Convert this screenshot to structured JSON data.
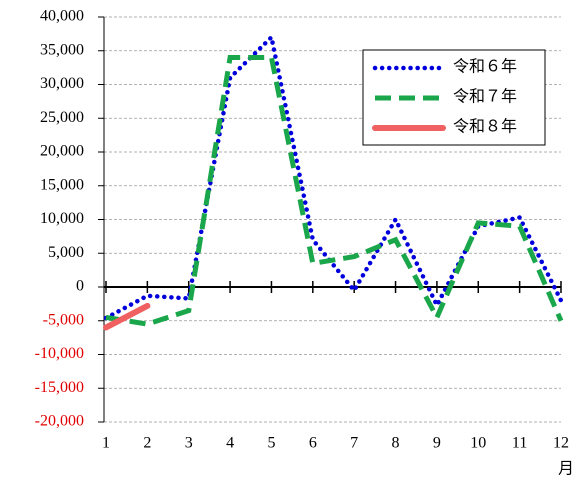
{
  "chart_data": {
    "type": "line",
    "x": [
      1,
      2,
      3,
      4,
      5,
      6,
      7,
      8,
      9,
      10,
      11,
      12
    ],
    "x_label": "月",
    "xlim": [
      1,
      12
    ],
    "xticks": [
      1,
      2,
      3,
      4,
      5,
      6,
      7,
      8,
      9,
      10,
      11,
      12
    ],
    "ylim": [
      -20000,
      40000
    ],
    "yticks": [
      {
        "value": -20000,
        "label": "-20,000"
      },
      {
        "value": -15000,
        "label": "-15,000"
      },
      {
        "value": -10000,
        "label": "-10,000"
      },
      {
        "value": -5000,
        "label": "-5,000"
      },
      0,
      {
        "value": 5000,
        "label": "5,000"
      },
      {
        "value": 10000,
        "label": "10,000"
      },
      {
        "value": 15000,
        "label": "15,000"
      },
      {
        "value": 20000,
        "label": "20,000"
      },
      {
        "value": 25000,
        "label": "25,000"
      },
      {
        "value": 30000,
        "label": "30,000"
      },
      {
        "value": 35000,
        "label": "35,000"
      },
      {
        "value": 40000,
        "label": "40,000"
      }
    ],
    "grid": true,
    "negative_tick_color": "#e00000",
    "legend": "upper right",
    "series": [
      {
        "name": "令和６年",
        "color": "#0000dd",
        "style": "dotted",
        "values": [
          -4600,
          -1300,
          -1700,
          31000,
          37000,
          7000,
          -500,
          10000,
          -2700,
          9000,
          10300,
          -2000
        ]
      },
      {
        "name": "令和７年",
        "color": "#1aa64a",
        "style": "dashed",
        "values": [
          -4500,
          -5500,
          -3500,
          34000,
          34000,
          3500,
          4500,
          7000,
          -4500,
          9500,
          9000,
          -5000
        ]
      },
      {
        "name": "令和８年",
        "color": "#f06060",
        "style": "solid",
        "values": [
          -6000,
          -2800,
          null,
          null,
          null,
          null,
          null,
          null,
          null,
          null,
          null,
          null
        ]
      }
    ]
  }
}
